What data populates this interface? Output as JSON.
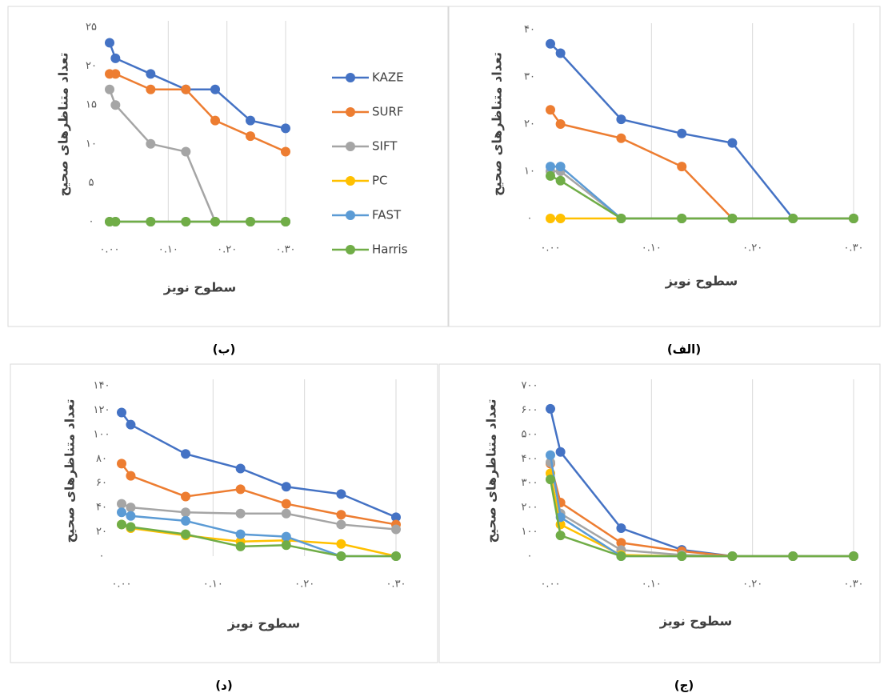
{
  "chart_data": [
    {
      "type": "line",
      "caption": "(الف)",
      "xlabel": "سطوح نویز",
      "ylabel": "تعداد متناظرهای صحیح",
      "x": [
        0,
        0.01,
        0.07,
        0.13,
        0.18,
        0.24,
        0.3
      ],
      "xlim": [
        0,
        0.3
      ],
      "xticks": [
        {
          "value": 0,
          "label": "۰.۰۰"
        },
        {
          "value": 0.1,
          "label": "۰.۱۰"
        },
        {
          "value": 0.2,
          "label": "۰.۲۰"
        },
        {
          "value": 0.3,
          "label": "۰.۳۰"
        }
      ],
      "ylim": [
        0,
        40
      ],
      "yticks": [
        {
          "value": 0,
          "label": "۰"
        },
        {
          "value": 10,
          "label": "۱۰"
        },
        {
          "value": 20,
          "label": "۲۰"
        },
        {
          "value": 30,
          "label": "۳۰"
        },
        {
          "value": 40,
          "label": "۴۰"
        }
      ],
      "grid": "x",
      "series": [
        {
          "color": "#4472c4",
          "values": [
            37,
            35,
            21,
            18,
            16,
            0,
            0
          ]
        },
        {
          "color": "#ed7d31",
          "values": [
            23,
            20,
            17,
            11,
            0,
            0,
            0
          ]
        },
        {
          "color": "#a5a5a5",
          "values": [
            10,
            10,
            0,
            0,
            0,
            0,
            0
          ]
        },
        {
          "color": "#ffc000",
          "values": [
            0,
            0,
            0,
            0,
            0,
            0,
            0
          ]
        },
        {
          "color": "#5b9bd5",
          "values": [
            11,
            11,
            0,
            0,
            0,
            0,
            0
          ]
        },
        {
          "color": "#70ad47",
          "values": [
            9,
            8,
            0,
            0,
            0,
            0,
            0
          ]
        }
      ]
    },
    {
      "type": "line",
      "caption": "(ب)",
      "xlabel": "سطوح نویز",
      "ylabel": "تعداد متناظرهای صحیح",
      "x": [
        0,
        0.01,
        0.07,
        0.13,
        0.18,
        0.24,
        0.3
      ],
      "xlim": [
        0,
        0.3
      ],
      "xticks": [
        {
          "value": 0,
          "label": "۰.۰۰"
        },
        {
          "value": 0.1,
          "label": "۰.۱۰"
        },
        {
          "value": 0.2,
          "label": "۰.۲۰"
        },
        {
          "value": 0.3,
          "label": "۰.۳۰"
        }
      ],
      "ylim": [
        0,
        25
      ],
      "yticks": [
        {
          "value": 0,
          "label": "۰"
        },
        {
          "value": 5,
          "label": "۵"
        },
        {
          "value": 10,
          "label": "۱۰"
        },
        {
          "value": 15,
          "label": "۱۵"
        },
        {
          "value": 20,
          "label": "۲۰"
        },
        {
          "value": 25,
          "label": "۲۵"
        }
      ],
      "grid": "x",
      "legend": "right",
      "series": [
        {
          "name": "KAZE",
          "color": "#4472c4",
          "values": [
            23,
            21,
            19,
            17,
            17,
            13,
            12
          ]
        },
        {
          "name": "SURF",
          "color": "#ed7d31",
          "values": [
            19,
            19,
            17,
            17,
            13,
            11,
            9
          ]
        },
        {
          "name": "SIFT",
          "color": "#a5a5a5",
          "values": [
            17,
            15,
            10,
            9,
            0,
            0,
            0
          ]
        },
        {
          "name": "PC",
          "color": "#ffc000",
          "values": [
            0,
            0,
            0,
            0,
            0,
            0,
            0
          ]
        },
        {
          "name": "FAST",
          "color": "#5b9bd5",
          "values": [
            0,
            0,
            0,
            0,
            0,
            0,
            0
          ]
        },
        {
          "name": "Harris",
          "color": "#70ad47",
          "values": [
            0,
            0,
            0,
            0,
            0,
            0,
            0
          ]
        }
      ]
    },
    {
      "type": "line",
      "caption": "(ج)",
      "xlabel": "سطوح نویز",
      "ylabel": "تعداد متناظرهای صحیح",
      "x": [
        0,
        0.01,
        0.07,
        0.13,
        0.18,
        0.24,
        0.3
      ],
      "xlim": [
        0,
        0.3
      ],
      "xticks": [
        {
          "value": 0,
          "label": "۰.۰۰"
        },
        {
          "value": 0.1,
          "label": "۰.۱۰"
        },
        {
          "value": 0.2,
          "label": "۰.۲۰"
        },
        {
          "value": 0.3,
          "label": "۰.۳۰"
        }
      ],
      "ylim": [
        0,
        700
      ],
      "yticks": [
        {
          "value": 0,
          "label": "۰"
        },
        {
          "value": 100,
          "label": "۱۰۰"
        },
        {
          "value": 200,
          "label": "۲۰۰"
        },
        {
          "value": 300,
          "label": "۳۰۰"
        },
        {
          "value": 400,
          "label": "۴۰۰"
        },
        {
          "value": 500,
          "label": "۵۰۰"
        },
        {
          "value": 600,
          "label": "۶۰۰"
        },
        {
          "value": 700,
          "label": "۷۰۰"
        }
      ],
      "grid": "x",
      "series": [
        {
          "color": "#4472c4",
          "values": [
            605,
            428,
            115,
            26,
            0,
            0,
            0
          ]
        },
        {
          "color": "#ed7d31",
          "values": [
            380,
            220,
            55,
            20,
            0,
            0,
            0
          ]
        },
        {
          "color": "#a5a5a5",
          "values": [
            385,
            175,
            25,
            5,
            0,
            0,
            0
          ]
        },
        {
          "color": "#ffc000",
          "values": [
            340,
            130,
            5,
            0,
            0,
            0,
            0
          ]
        },
        {
          "color": "#5b9bd5",
          "values": [
            415,
            160,
            0,
            0,
            0,
            0,
            0
          ]
        },
        {
          "color": "#70ad47",
          "values": [
            315,
            85,
            0,
            0,
            0,
            0,
            0
          ]
        }
      ]
    },
    {
      "type": "line",
      "caption": "(د)",
      "xlabel": "سطوح نویز",
      "ylabel": "تعداد متناظرهای صحیح",
      "x": [
        0,
        0.01,
        0.07,
        0.13,
        0.18,
        0.24,
        0.3
      ],
      "xlim": [
        0,
        0.3
      ],
      "xticks": [
        {
          "value": 0,
          "label": "۰.۰۰"
        },
        {
          "value": 0.1,
          "label": "۰.۱۰"
        },
        {
          "value": 0.2,
          "label": "۰.۲۰"
        },
        {
          "value": 0.3,
          "label": "۰.۳۰"
        }
      ],
      "ylim": [
        0,
        140
      ],
      "yticks": [
        {
          "value": 0,
          "label": "۰"
        },
        {
          "value": 20,
          "label": "۲۰"
        },
        {
          "value": 40,
          "label": "۴۰"
        },
        {
          "value": 60,
          "label": "۶۰"
        },
        {
          "value": 80,
          "label": "۸۰"
        },
        {
          "value": 100,
          "label": "۱۰۰"
        },
        {
          "value": 120,
          "label": "۱۲۰"
        },
        {
          "value": 140,
          "label": "۱۴۰"
        }
      ],
      "grid": "x",
      "series": [
        {
          "color": "#4472c4",
          "values": [
            118,
            108,
            84,
            72,
            57,
            51,
            32
          ]
        },
        {
          "color": "#ed7d31",
          "values": [
            76,
            66,
            49,
            55,
            43,
            34,
            26
          ]
        },
        {
          "color": "#a5a5a5",
          "values": [
            43,
            40,
            36,
            35,
            35,
            26,
            22
          ]
        },
        {
          "color": "#ffc000",
          "values": [
            26,
            23,
            17,
            12,
            13,
            10,
            0
          ]
        },
        {
          "color": "#5b9bd5",
          "values": [
            36,
            33,
            29,
            18,
            16,
            0,
            0
          ]
        },
        {
          "color": "#70ad47",
          "values": [
            26,
            24,
            18,
            8,
            9,
            0,
            0
          ]
        }
      ]
    }
  ]
}
